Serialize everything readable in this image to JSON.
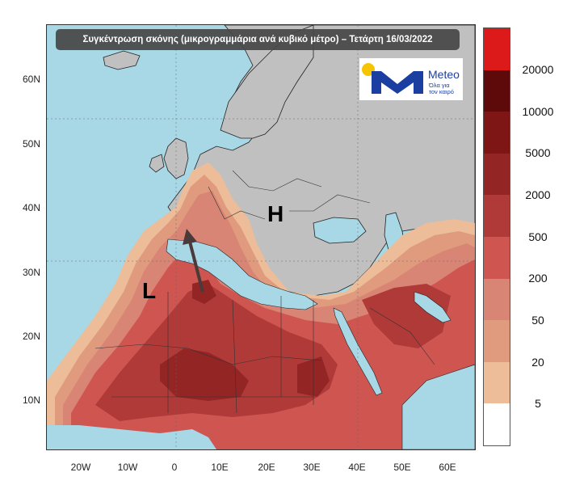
{
  "title": "Συγκέντρωση σκόνης (μικρογραμμάρια ανά κυβικό μέτρο) – Τετάρτη 16/03/2022",
  "logo": {
    "brand": "Meteo",
    "tagline_1": "Όλα για",
    "tagline_2": "τον καιρό"
  },
  "markers": {
    "low": "L",
    "high": "H"
  },
  "lat_labels": [
    "60N",
    "50N",
    "40N",
    "30N",
    "20N",
    "10N"
  ],
  "lon_labels": [
    "20W",
    "10W",
    "0",
    "10E",
    "20E",
    "30E",
    "40E",
    "50E",
    "60E"
  ],
  "legend": {
    "labels": [
      "20000",
      "10000",
      "5000",
      "2000",
      "500",
      "200",
      "50",
      "20",
      "5"
    ],
    "colors": [
      "#dc1a1a",
      "#5e0a0a",
      "#7e1616",
      "#932525",
      "#b03a38",
      "#cf5551",
      "#d98575",
      "#e09a7e",
      "#ecbd98",
      "#ffffff"
    ]
  },
  "colors": {
    "sea": "#a8d8e6",
    "land": "#c0c0c0",
    "border": "#222222",
    "arrow": "#4a3a3a"
  }
}
